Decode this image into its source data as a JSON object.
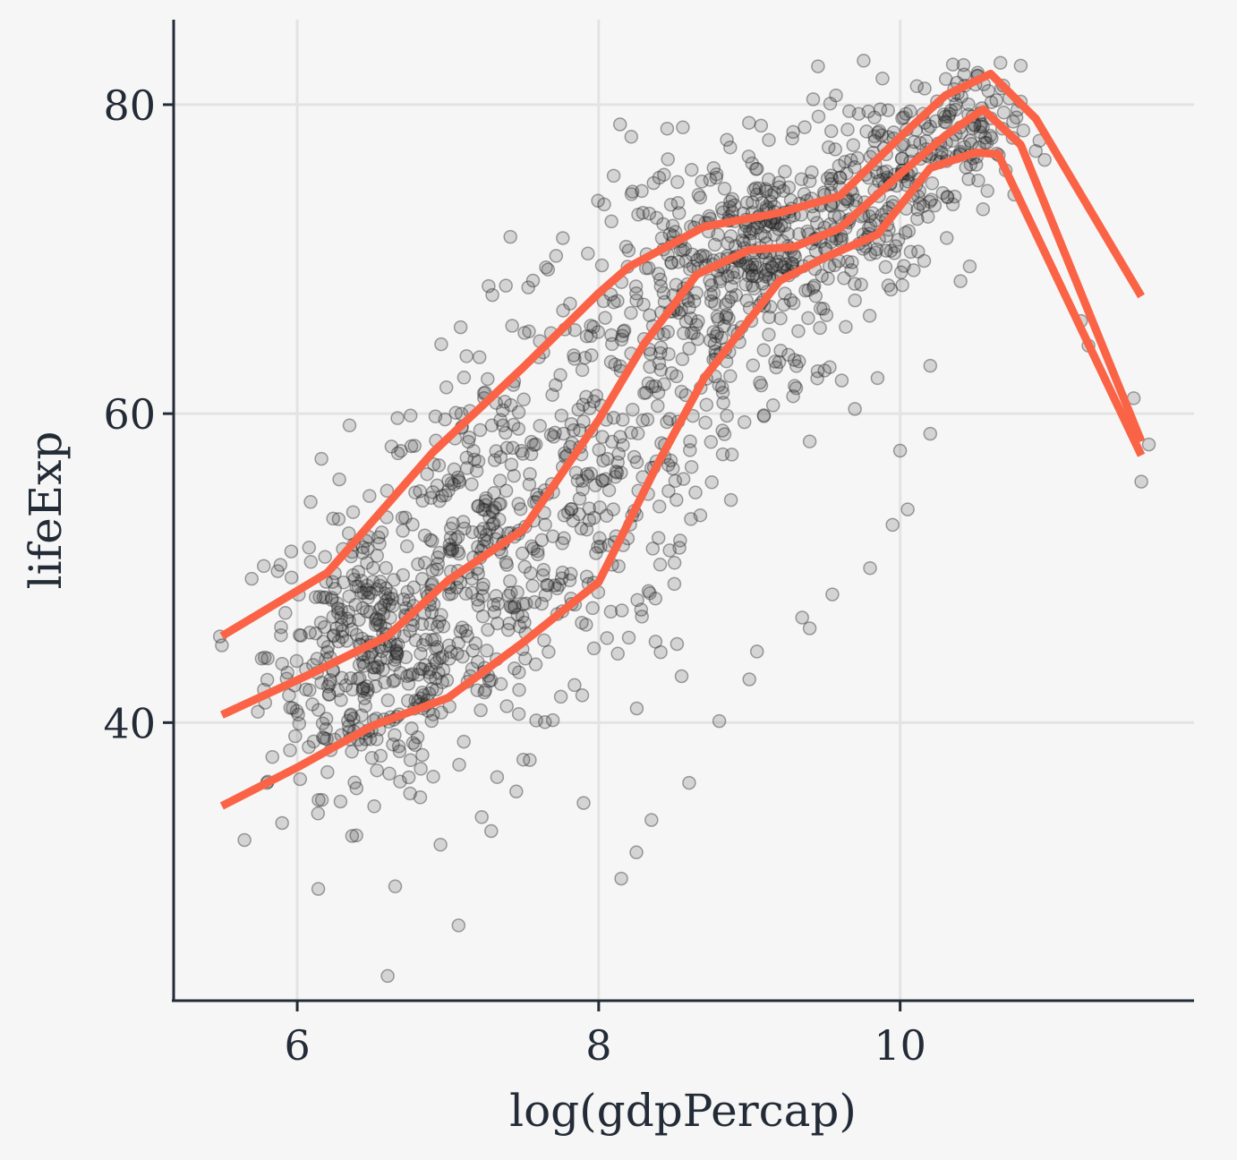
{
  "chart_data": {
    "type": "scatter",
    "title": "",
    "xlabel": "log(gdpPercap)",
    "ylabel": "lifeExp",
    "xlim": [
      5.18,
      11.95
    ],
    "ylim": [
      22.0,
      85.5
    ],
    "x_ticks": [
      6,
      8,
      10
    ],
    "y_ticks": [
      40,
      60,
      80
    ],
    "x_tick_labels": [
      "6",
      "8",
      "10"
    ],
    "y_tick_labels": [
      "40",
      "60",
      "80"
    ],
    "grid": true,
    "legend": "none",
    "point_color": "#282828",
    "line_color": "#fa6346",
    "scatter_clusters": [
      {
        "cx": 6.5,
        "cy": 44.5,
        "sx": 0.35,
        "sy": 4.5,
        "n": 380
      },
      {
        "cx": 7.3,
        "cy": 51.0,
        "sx": 0.4,
        "sy": 6.0,
        "n": 300
      },
      {
        "cx": 8.0,
        "cy": 58.0,
        "sx": 0.35,
        "sy": 7.0,
        "n": 200
      },
      {
        "cx": 8.7,
        "cy": 67.5,
        "sx": 0.35,
        "sy": 5.0,
        "n": 230
      },
      {
        "cx": 9.2,
        "cy": 70.5,
        "sx": 0.3,
        "sy": 3.0,
        "n": 230
      },
      {
        "cx": 9.9,
        "cy": 75.0,
        "sx": 0.3,
        "sy": 3.0,
        "n": 180
      },
      {
        "cx": 10.4,
        "cy": 78.5,
        "sx": 0.2,
        "sy": 2.0,
        "n": 90
      }
    ],
    "scatter_outliers": [
      {
        "x": 5.5,
        "y": 45.0
      },
      {
        "x": 5.8,
        "y": 36.1
      },
      {
        "x": 5.65,
        "y": 32.4
      },
      {
        "x": 6.6,
        "y": 23.6
      },
      {
        "x": 6.65,
        "y": 29.4
      },
      {
        "x": 6.95,
        "y": 32.1
      },
      {
        "x": 7.5,
        "y": 37.6
      },
      {
        "x": 7.9,
        "y": 34.8
      },
      {
        "x": 8.15,
        "y": 29.9
      },
      {
        "x": 8.25,
        "y": 31.6
      },
      {
        "x": 8.35,
        "y": 33.7
      },
      {
        "x": 8.6,
        "y": 36.1
      },
      {
        "x": 8.8,
        "y": 40.1
      },
      {
        "x": 9.0,
        "y": 42.8
      },
      {
        "x": 9.05,
        "y": 44.6
      },
      {
        "x": 9.4,
        "y": 46.1
      },
      {
        "x": 9.35,
        "y": 46.8
      },
      {
        "x": 9.55,
        "y": 48.3
      },
      {
        "x": 9.8,
        "y": 50.0
      },
      {
        "x": 9.95,
        "y": 52.8
      },
      {
        "x": 10.05,
        "y": 53.8
      },
      {
        "x": 10.0,
        "y": 57.6
      },
      {
        "x": 10.2,
        "y": 58.7
      },
      {
        "x": 10.2,
        "y": 63.1
      },
      {
        "x": 9.7,
        "y": 60.3
      },
      {
        "x": 9.85,
        "y": 62.3
      },
      {
        "x": 9.3,
        "y": 61.8
      },
      {
        "x": 9.4,
        "y": 58.2
      },
      {
        "x": 11.2,
        "y": 66.0
      },
      {
        "x": 11.6,
        "y": 55.6
      },
      {
        "x": 11.65,
        "y": 58.0
      },
      {
        "x": 11.55,
        "y": 61.0
      },
      {
        "x": 11.25,
        "y": 64.4
      },
      {
        "x": 10.9,
        "y": 77.0
      },
      {
        "x": 10.8,
        "y": 80.2
      },
      {
        "x": 10.35,
        "y": 82.6
      },
      {
        "x": 10.5,
        "y": 81.3
      },
      {
        "x": 10.75,
        "y": 78.9
      },
      {
        "x": 6.2,
        "y": 36.8
      },
      {
        "x": 5.9,
        "y": 33.5
      },
      {
        "x": 8.2,
        "y": 45.5
      },
      {
        "x": 8.55,
        "y": 43.0
      }
    ],
    "series": [
      {
        "x": [
          5.5,
          6.2,
          6.9,
          7.5,
          8.0,
          8.2,
          8.7,
          9.2,
          9.6,
          10.0,
          10.3,
          10.6,
          10.9,
          11.6
        ],
        "values": [
          45.6,
          49.7,
          57.5,
          63.0,
          67.8,
          69.5,
          72.1,
          73.0,
          74.1,
          77.9,
          80.6,
          82.0,
          79.1,
          67.6
        ]
      },
      {
        "x": [
          5.5,
          6.1,
          6.6,
          7.0,
          7.5,
          8.0,
          8.3,
          8.65,
          9.0,
          9.3,
          9.6,
          10.0,
          10.3,
          10.55,
          10.8,
          11.6
        ],
        "values": [
          40.5,
          43.2,
          45.6,
          49.2,
          52.5,
          59.6,
          64.5,
          69.0,
          70.6,
          70.8,
          72.0,
          75.5,
          78.0,
          79.7,
          77.4,
          58.2
        ]
      },
      {
        "x": [
          5.5,
          6.0,
          6.5,
          7.0,
          7.5,
          8.0,
          8.4,
          8.7,
          9.2,
          9.5,
          9.85,
          10.2,
          10.5,
          10.65,
          11.6
        ],
        "values": [
          34.6,
          37.1,
          39.8,
          41.6,
          45.2,
          49.1,
          56.9,
          62.3,
          68.6,
          70.1,
          71.6,
          75.9,
          76.9,
          76.8,
          57.3
        ]
      }
    ]
  }
}
